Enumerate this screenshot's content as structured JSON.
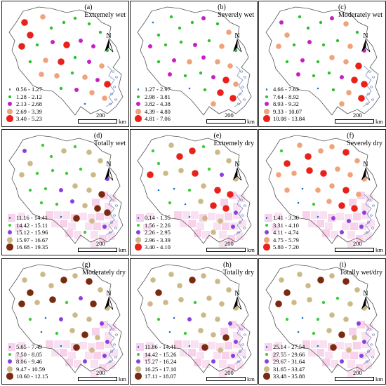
{
  "panels": [
    {
      "id": "a",
      "title": "(a)\nExtremely wet",
      "legend": [
        "0.56 - 1.27",
        "1.28 - 2.12",
        "2.13 - 2.68",
        "2.69 - 3.39",
        "3.40 - 5.23"
      ],
      "wet": true,
      "pink": false
    },
    {
      "id": "b",
      "title": "(b)\nSeverely wet",
      "legend": [
        "1.27 - 2.97",
        "2.98 - 3.81",
        "3.82 - 4.38",
        "4.39 - 4.80",
        "4.81 - 7.06"
      ],
      "wet": true,
      "pink": false
    },
    {
      "id": "c",
      "title": "(c)\nModerately wet",
      "legend": [
        "4.66 - 7.63",
        "7.64 - 8.92",
        "8.93 - 9.32",
        "9.33 - 10.07",
        "10.08 - 13.84"
      ],
      "wet": true,
      "pink": false
    },
    {
      "id": "d",
      "title": "(d)\nTotally wet",
      "legend": [
        "11.16 - 14.41",
        "14.42 - 15.11",
        "15.12 - 15.96",
        "15.97 - 16.67",
        "16.68 - 19.35"
      ],
      "wet": false,
      "pink": true
    },
    {
      "id": "e",
      "title": "(e)\nExtremely dry",
      "legend": [
        "0.14 - 1.55",
        "1.56 - 2.26",
        "2.26 - 2.95",
        "2.96 - 3.39",
        "3.40 - 4.10"
      ],
      "wet": false,
      "pink": true,
      "altColors": true
    },
    {
      "id": "f",
      "title": "(f)\nSeverely dry",
      "legend": [
        "1.41 - 3.30",
        "3.31 - 4.10",
        "4.11 - 4.74",
        "4.75 - 5.79",
        "5.80 - 7.20"
      ],
      "wet": false,
      "pink": true,
      "fcolors": true
    },
    {
      "id": "g",
      "title": "(g)\nModerately dry",
      "legend": [
        "5.65 - 7.49",
        "7.50 - 8.05",
        "8.06 - 9.46",
        "9.47 - 10.59",
        "10.60 - 12.15"
      ],
      "wet": false,
      "pink": true
    },
    {
      "id": "h",
      "title": "(h)\nTotally dry",
      "legend": [
        "11.86 - 14.41",
        "14.42 - 15.26",
        "15.27 - 16.24",
        "16.25 - 17.10",
        "17.11 - 18.07"
      ],
      "wet": false,
      "pink": true
    },
    {
      "id": "i",
      "title": "(i)\nTotally wet/dry",
      "legend": [
        "25.14 - 27.54",
        "27.55 - 29.66",
        "29.67 - 31.64",
        "31.65 - 33.47",
        "33.48 - 35.88"
      ],
      "wet": false,
      "pink": true
    }
  ],
  "scale": {
    "value": "200",
    "unit": "km"
  },
  "north_label": "N",
  "colors": {
    "wet": [
      "#1f6fd6",
      "#2fbf2f",
      "#c61fc6",
      "#f0a27a",
      "#e8221b"
    ],
    "dry": [
      "#1f6fd6",
      "#3ccb3c",
      "#8a3fe0",
      "#cdb887",
      "#7a2a0f"
    ],
    "dry_e": [
      "#1f6fd6",
      "#3ccb3c",
      "#8a3fe0",
      "#cdb887",
      "#e8221b"
    ],
    "dry_f": [
      "#1f6fd6",
      "#3ccb3c",
      "#8a3fe0",
      "#f0a27a",
      "#e8221b"
    ],
    "boundary": "#555555",
    "pink": "#f7cde8"
  }
}
